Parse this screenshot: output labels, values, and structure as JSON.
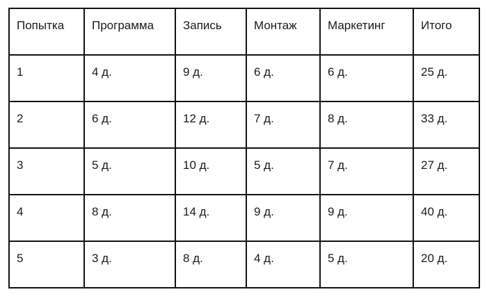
{
  "table": {
    "headers": [
      "Попытка",
      "Программа",
      "Запись",
      "Монтаж",
      "Маркетинг",
      "Итого"
    ],
    "rows": [
      [
        "1",
        "4 д.",
        "9 д.",
        "6 д.",
        "6 д.",
        "25 д."
      ],
      [
        "2",
        "6 д.",
        "12 д.",
        "7 д.",
        "8 д.",
        "33 д."
      ],
      [
        "3",
        "5 д.",
        "10 д.",
        "5 д.",
        "7 д.",
        "27 д."
      ],
      [
        "4",
        "8 д.",
        "14 д.",
        "9 д.",
        "9 д.",
        "40 д."
      ],
      [
        "5",
        "3 д.",
        "8 д.",
        "4 д.",
        "5 д.",
        "20 д."
      ]
    ]
  }
}
